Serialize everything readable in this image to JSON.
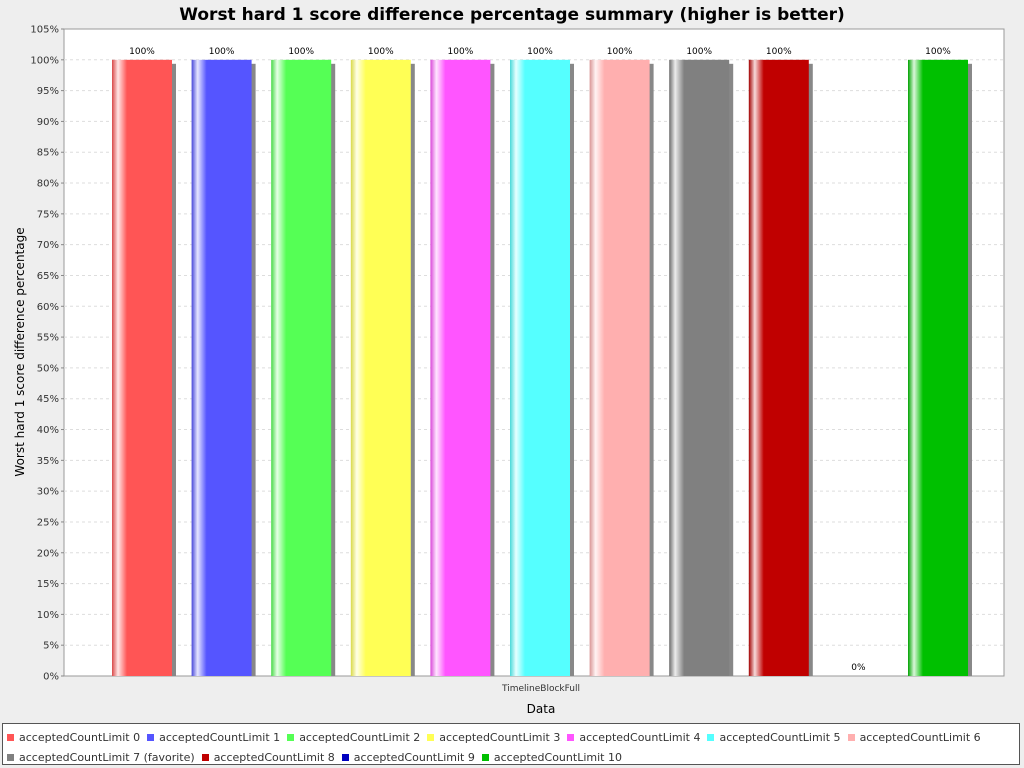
{
  "chart_data": {
    "type": "bar",
    "title": "Worst hard 1 score difference percentage summary (higher is better)",
    "xlabel": "Data",
    "ylabel": "Worst hard 1 score difference percentage",
    "categories": [
      "TimelineBlockFull"
    ],
    "ylim": [
      0,
      105
    ],
    "ytick_step": 5,
    "grid": true,
    "legend_position": "bottom",
    "series": [
      {
        "name": "acceptedCountLimit 0",
        "values": [
          100
        ],
        "label": "100%",
        "color": "#ff5555"
      },
      {
        "name": "acceptedCountLimit 1",
        "values": [
          100
        ],
        "label": "100%",
        "color": "#5555ff"
      },
      {
        "name": "acceptedCountLimit 2",
        "values": [
          100
        ],
        "label": "100%",
        "color": "#55ff55"
      },
      {
        "name": "acceptedCountLimit 3",
        "values": [
          100
        ],
        "label": "100%",
        "color": "#ffff55"
      },
      {
        "name": "acceptedCountLimit 4",
        "values": [
          100
        ],
        "label": "100%",
        "color": "#ff55ff"
      },
      {
        "name": "acceptedCountLimit 5",
        "values": [
          100
        ],
        "label": "100%",
        "color": "#55ffff"
      },
      {
        "name": "acceptedCountLimit 6",
        "values": [
          100
        ],
        "label": "100%",
        "color": "#ffafaf"
      },
      {
        "name": "acceptedCountLimit 7 (favorite)",
        "values": [
          100
        ],
        "label": "100%",
        "color": "#808080"
      },
      {
        "name": "acceptedCountLimit 8",
        "values": [
          100
        ],
        "label": "100%",
        "color": "#c00000"
      },
      {
        "name": "acceptedCountLimit 9",
        "values": [
          0
        ],
        "label": "0%",
        "color": "#0000c0"
      },
      {
        "name": "acceptedCountLimit 10",
        "values": [
          100
        ],
        "label": "100%",
        "color": "#00c000"
      }
    ]
  }
}
